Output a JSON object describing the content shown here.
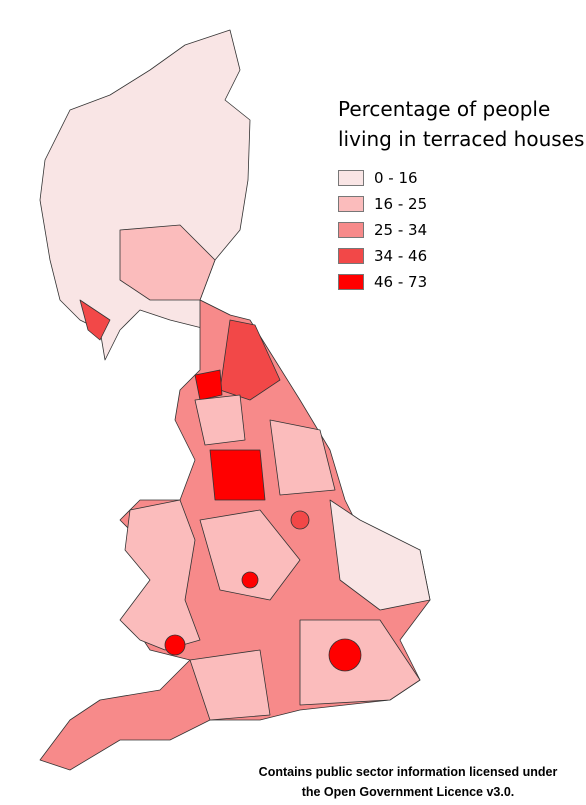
{
  "legend": {
    "title": "Percentage of people living in terraced houses",
    "items": [
      {
        "label": "0 - 16",
        "color": "#f9e5e5"
      },
      {
        "label": "16 - 25",
        "color": "#fbbcbc"
      },
      {
        "label": "25 - 34",
        "color": "#f78a8a"
      },
      {
        "label": "34 - 46",
        "color": "#f24848"
      },
      {
        "label": "46 - 73",
        "color": "#ff0000"
      }
    ]
  },
  "attribution": "Contains public sector information licensed under the Open Government Licence v3.0."
}
